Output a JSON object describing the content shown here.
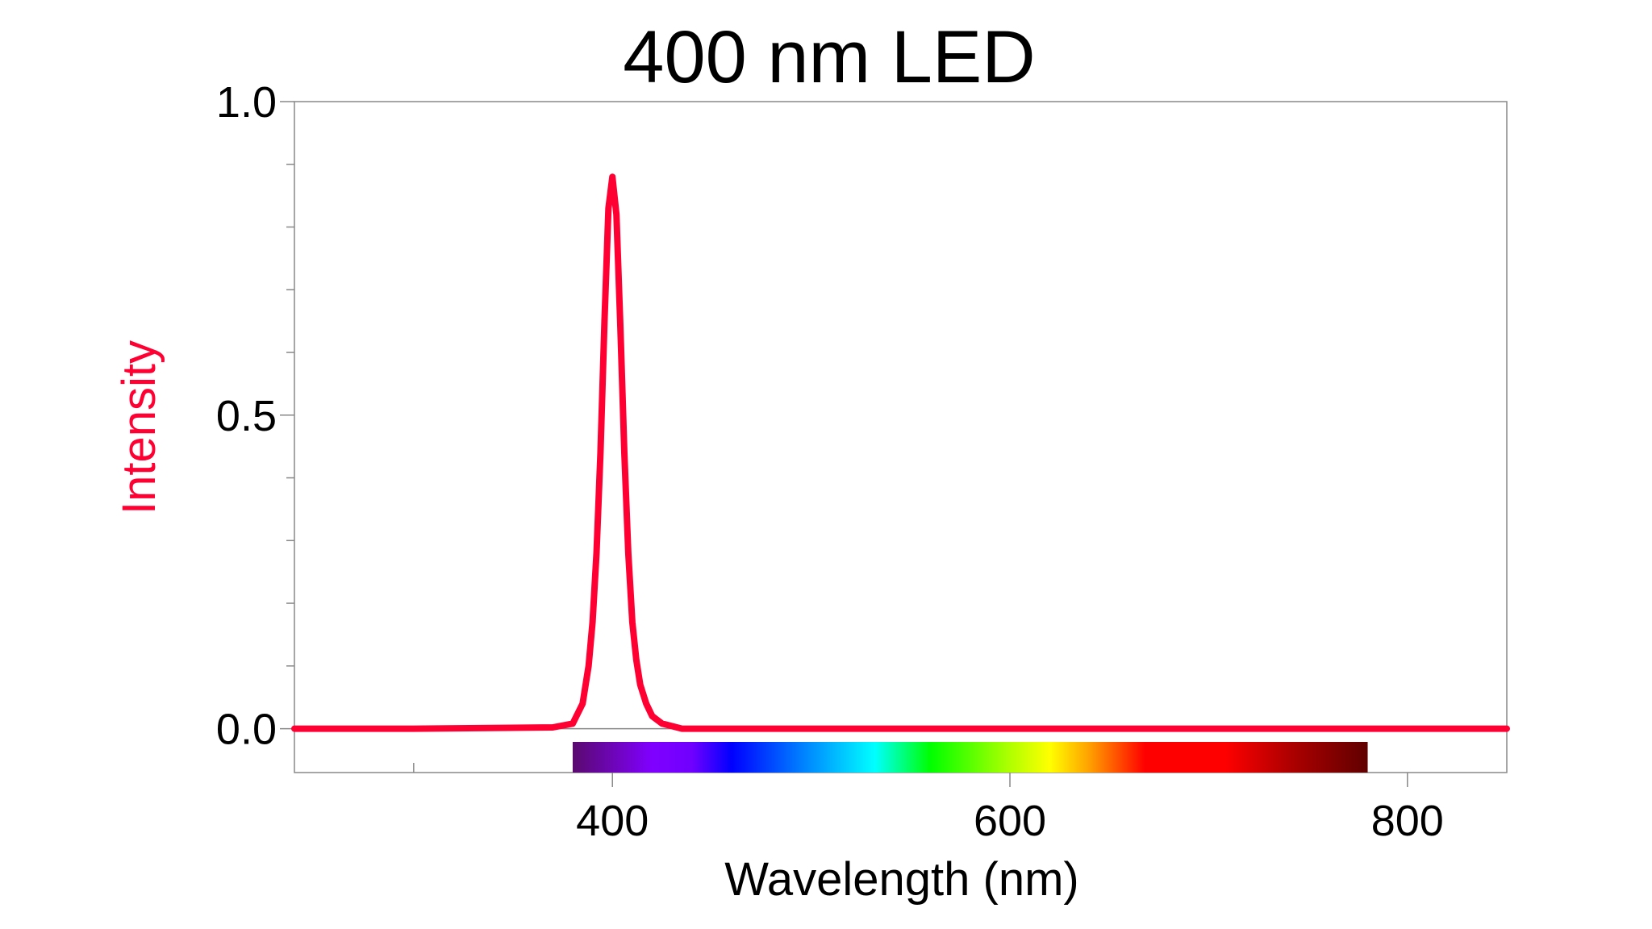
{
  "chart_data": {
    "type": "line",
    "title": "400 nm LED",
    "xlabel": "Wavelength (nm)",
    "ylabel": "Intensity",
    "xlim": [
      240,
      850
    ],
    "ylim": [
      -0.07,
      1.0
    ],
    "x_ticks": [
      400,
      600,
      800
    ],
    "x_tick_labels": [
      "400",
      "600",
      "800"
    ],
    "x_minor_ticks": [
      300,
      500,
      700
    ],
    "y_ticks": [
      0.0,
      0.5,
      1.0
    ],
    "y_tick_labels": [
      "0.0",
      "0.5",
      "1.0"
    ],
    "y_minor_ticks": [
      0.1,
      0.2,
      0.3,
      0.4,
      0.6,
      0.7,
      0.8,
      0.9
    ],
    "grid": false,
    "series": [
      {
        "color": "#ff0033",
        "x": [
          240,
          300,
          370,
          380,
          385,
          388,
          390,
          392,
          394,
          396,
          398,
          400,
          402,
          404,
          406,
          408,
          410,
          412,
          414,
          417,
          420,
          425,
          435,
          500,
          600,
          700,
          800,
          850
        ],
        "y": [
          0,
          0,
          0.002,
          0.008,
          0.04,
          0.1,
          0.17,
          0.28,
          0.44,
          0.65,
          0.83,
          0.88,
          0.82,
          0.64,
          0.44,
          0.28,
          0.17,
          0.11,
          0.07,
          0.04,
          0.02,
          0.008,
          0,
          0,
          0,
          0,
          0,
          0
        ]
      }
    ],
    "spectrum_bar": {
      "range_nm": [
        380,
        780
      ]
    },
    "colors": {
      "line": "#ff0033",
      "ylabel": "#ff0033",
      "axes": "#808080"
    }
  }
}
